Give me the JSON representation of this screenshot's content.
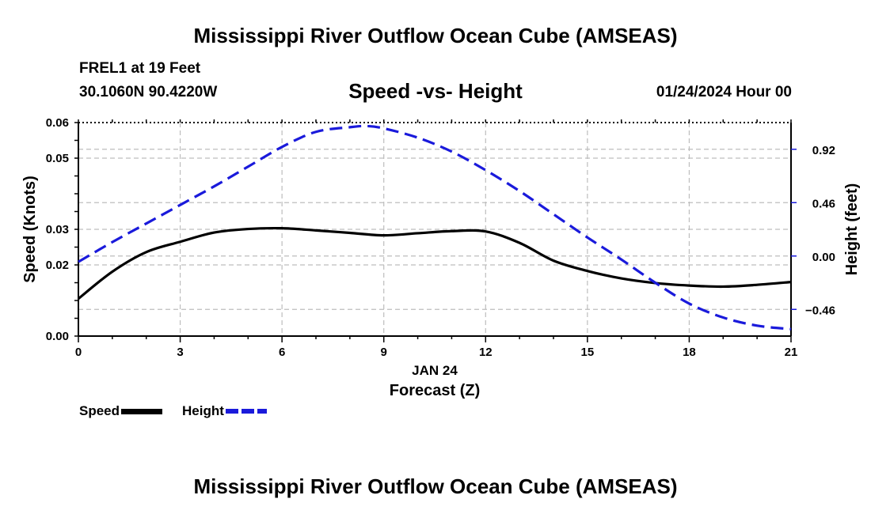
{
  "page": {
    "title_top": "Mississippi River Outflow Ocean Cube (AMSEAS)",
    "title_bottom": "Mississippi River Outflow Ocean Cube (AMSEAS)",
    "station": "FREL1 at 19 Feet",
    "coords": "30.1060N  90.4220W",
    "subtitle": "Speed -vs- Height",
    "datetime": "01/24/2024 Hour 00"
  },
  "legend": {
    "speed_label": "Speed",
    "height_label": "Height"
  },
  "colors": {
    "speed": "#000000",
    "height": "#1a1adb",
    "grid": "#bdbdbd"
  },
  "chart_data": {
    "type": "line",
    "title": "Speed -vs- Height",
    "xlabel": "Forecast (Z)",
    "xlabel_date": "JAN 24",
    "xlim": [
      0,
      21
    ],
    "x_ticks": [
      0,
      3,
      6,
      9,
      12,
      15,
      18,
      21
    ],
    "x_tick_labels": [
      "0",
      "3",
      "6",
      "9",
      "12",
      "15",
      "18",
      "21"
    ],
    "ylabel_left": "Speed (Knots)",
    "ylim_left": [
      0.0,
      0.06
    ],
    "y_ticks_left": [
      0.0,
      0.02,
      0.03,
      0.05,
      0.06
    ],
    "y_tick_labels_left": [
      "0.00",
      "0.02",
      "0.03",
      "0.05",
      "0.06"
    ],
    "ylabel_right": "Height (feet)",
    "ylim_right": [
      -0.69,
      1.15
    ],
    "y_ticks_right": [
      -0.46,
      0.0,
      0.46,
      0.92
    ],
    "y_tick_labels_right": [
      "−0.46",
      "0.00",
      "0.46",
      "0.92"
    ],
    "grid": true,
    "series": [
      {
        "name": "Speed",
        "axis": "left",
        "style": "solid",
        "x": [
          0,
          1,
          2,
          3,
          4,
          5,
          6,
          7,
          8,
          9,
          10,
          11,
          12,
          13,
          14,
          15,
          16,
          17,
          18,
          19,
          20,
          21
        ],
        "values": [
          0.0105,
          0.0181,
          0.0236,
          0.0265,
          0.0291,
          0.0301,
          0.0303,
          0.0297,
          0.029,
          0.0283,
          0.0289,
          0.0295,
          0.0294,
          0.0262,
          0.0212,
          0.0183,
          0.0162,
          0.0149,
          0.0142,
          0.0139,
          0.0144,
          0.0152
        ]
      },
      {
        "name": "Height",
        "axis": "right",
        "style": "dashed",
        "x": [
          0,
          1,
          2,
          3,
          4,
          5,
          6,
          7,
          8,
          8.5,
          9,
          10,
          11,
          12,
          13,
          14,
          15,
          16,
          17,
          18,
          19,
          20,
          21
        ],
        "values": [
          -0.05,
          0.12,
          0.28,
          0.44,
          0.6,
          0.77,
          0.94,
          1.07,
          1.11,
          1.12,
          1.1,
          1.02,
          0.9,
          0.74,
          0.56,
          0.36,
          0.16,
          -0.03,
          -0.23,
          -0.41,
          -0.53,
          -0.6,
          -0.63
        ]
      }
    ]
  }
}
